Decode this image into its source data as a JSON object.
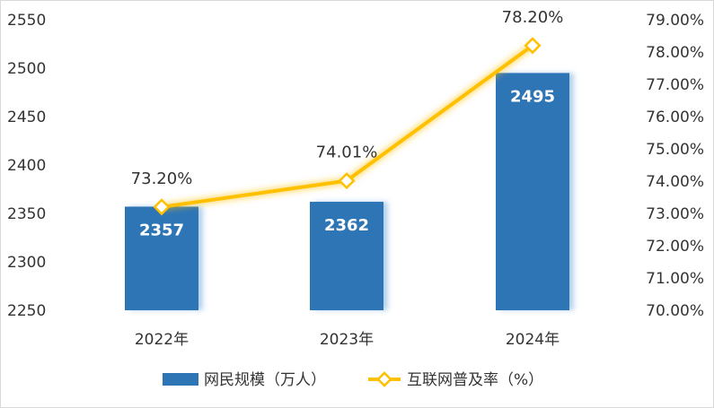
{
  "chart_data": {
    "type": "bar",
    "categories": [
      "2022年",
      "2023年",
      "2024年"
    ],
    "series": [
      {
        "name": "网民规模（万人）",
        "type": "bar",
        "axis": "left",
        "values": [
          2357,
          2362,
          2495
        ],
        "labels": [
          "2357",
          "2362",
          "2495"
        ],
        "color": "#2E75B6"
      },
      {
        "name": "互联网普及率（%）",
        "type": "line",
        "axis": "right",
        "values": [
          73.2,
          74.01,
          78.2
        ],
        "labels": [
          "73.20%",
          "74.01%",
          "78.20%"
        ],
        "color": "#FFC000"
      }
    ],
    "y_left": {
      "ylim": [
        2250,
        2550
      ],
      "ticks": [
        2250,
        2300,
        2350,
        2400,
        2450,
        2500,
        2550
      ],
      "tick_labels": [
        "2250",
        "2300",
        "2350",
        "2400",
        "2450",
        "2500",
        "2550"
      ]
    },
    "y_right": {
      "ylim": [
        70,
        79
      ],
      "ticks": [
        70,
        71,
        72,
        73,
        74,
        75,
        76,
        77,
        78,
        79
      ],
      "tick_labels": [
        "70.00%",
        "71.00%",
        "72.00%",
        "73.00%",
        "74.00%",
        "75.00%",
        "76.00%",
        "77.00%",
        "78.00%",
        "79.00%"
      ]
    },
    "title": "",
    "xlabel": "",
    "ylabel": "",
    "grid": false,
    "legend": "bottom"
  }
}
